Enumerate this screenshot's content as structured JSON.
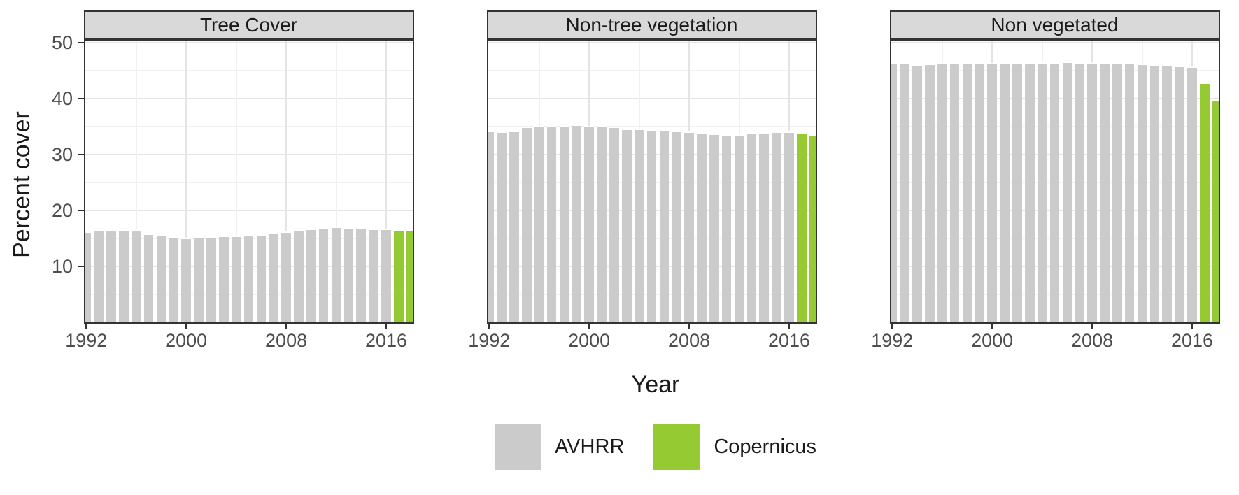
{
  "chart_data": {
    "type": "bar",
    "title": "",
    "xlabel": "Year",
    "ylabel": "Percent cover",
    "x_ticks": [
      1992,
      2000,
      2008,
      2016
    ],
    "x_minor_ticks": [
      1996,
      2004,
      2012
    ],
    "y_ticks": [
      10,
      20,
      30,
      40,
      50
    ],
    "y_minor_ticks": [
      5,
      15,
      25,
      35,
      45
    ],
    "xlim": [
      1991.9,
      2018.1
    ],
    "ylim": [
      0,
      50.3
    ],
    "grid": true,
    "legend_position": "bottom",
    "bar_width_years": 0.9,
    "legend": [
      {
        "label": "AVHRR",
        "color": "#cbcbcb"
      },
      {
        "label": "Copernicus",
        "color": "#95ca32"
      }
    ],
    "avhrr_years": [
      1992,
      1993,
      1994,
      1995,
      1996,
      1997,
      1998,
      1999,
      2000,
      2001,
      2002,
      2003,
      2004,
      2005,
      2006,
      2007,
      2008,
      2009,
      2010,
      2011,
      2012,
      2013,
      2014,
      2015,
      2016
    ],
    "copernicus_years": [
      2017,
      2018
    ],
    "facets": [
      {
        "title": "Tree Cover",
        "avhrr_values": [
          16.3,
          16.5,
          16.5,
          16.6,
          16.6,
          15.9,
          15.8,
          15.3,
          15.2,
          15.3,
          15.4,
          15.5,
          15.5,
          15.6,
          15.8,
          16.0,
          16.3,
          16.5,
          16.8,
          17.0,
          17.1,
          17.0,
          16.9,
          16.8,
          16.8
        ],
        "copernicus_values": [
          16.7,
          16.6
        ]
      },
      {
        "title": "Non-tree vegetation",
        "avhrr_values": [
          34.3,
          34.1,
          34.3,
          35.0,
          35.2,
          35.1,
          35.3,
          35.4,
          35.2,
          35.1,
          35.0,
          34.7,
          34.6,
          34.5,
          34.4,
          34.3,
          34.2,
          34.0,
          33.8,
          33.6,
          33.7,
          33.9,
          34.0,
          34.1,
          34.2
        ],
        "copernicus_values": [
          33.9,
          33.6
        ]
      },
      {
        "title": "Non vegetated",
        "avhrr_values": [
          46.5,
          46.4,
          46.2,
          46.3,
          46.4,
          46.5,
          46.6,
          46.5,
          46.4,
          46.4,
          46.5,
          46.6,
          46.6,
          46.6,
          46.7,
          46.6,
          46.6,
          46.5,
          46.5,
          46.4,
          46.3,
          46.2,
          46.1,
          45.9,
          45.8
        ],
        "copernicus_values": [
          42.9,
          39.9
        ]
      }
    ],
    "theme_colors": {
      "strip_bg": "#d9d9d9",
      "panel_border": "#333333",
      "grid_major": "#e4e4e4",
      "grid_minor": "#f0f0f0",
      "tick_text": "#4d4d4d",
      "title_text": "#1a1a1a",
      "background": "#ffffff"
    }
  }
}
